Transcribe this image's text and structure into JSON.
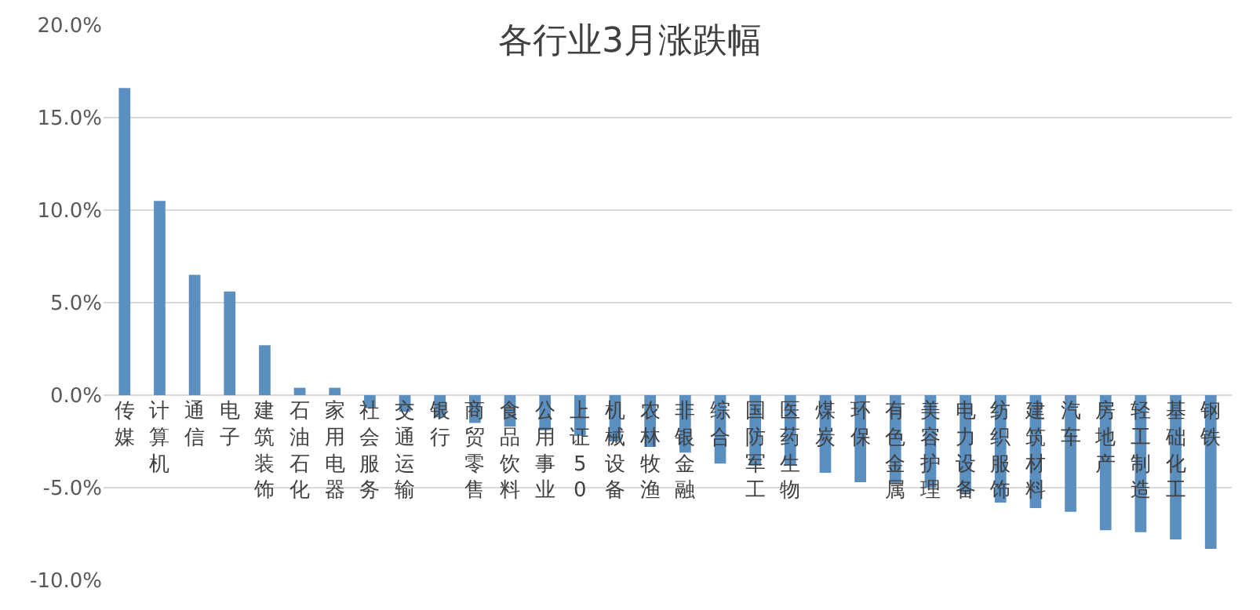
{
  "chart_data": {
    "type": "bar",
    "title": "各行业3月涨跌幅",
    "categories": [
      "传媒",
      "计算机",
      "通信",
      "电子",
      "建筑装饰",
      "石油石化",
      "家用电器",
      "社会服务",
      "交通运输",
      "银行",
      "商贸零售",
      "食品饮料",
      "公用事业",
      "上证50",
      "机械设备",
      "农林牧渔",
      "非银金融",
      "综合",
      "国防军工",
      "医药生物",
      "煤炭",
      "环保",
      "有色金属",
      "美容护理",
      "电力设备",
      "纺织服饰",
      "建筑材料",
      "汽车",
      "房地产",
      "轻工制造",
      "基础化工",
      "钢铁"
    ],
    "values": [
      16.6,
      10.5,
      6.5,
      5.6,
      2.7,
      0.4,
      0.4,
      -0.7,
      -0.9,
      -1.2,
      -1.5,
      -1.7,
      -1.9,
      -2.2,
      -2.5,
      -2.8,
      -3.1,
      -3.7,
      -3.8,
      -3.8,
      -4.2,
      -4.7,
      -4.8,
      -5.0,
      -5.3,
      -5.8,
      -6.1,
      -6.3,
      -7.3,
      -7.4,
      -7.8,
      -8.3
    ],
    "color": "#5b8fc0",
    "ylim": [
      -10,
      20
    ],
    "yticks": [
      {
        "value": 20,
        "label": "20.0%"
      },
      {
        "value": 15,
        "label": "15.0%"
      },
      {
        "value": 10,
        "label": "10.0%"
      },
      {
        "value": 5,
        "label": "5.0%"
      },
      {
        "value": 0,
        "label": "0.0%"
      },
      {
        "value": -5,
        "label": "-5.0%"
      },
      {
        "value": -10,
        "label": "-10.0%"
      }
    ],
    "grid": "y"
  }
}
